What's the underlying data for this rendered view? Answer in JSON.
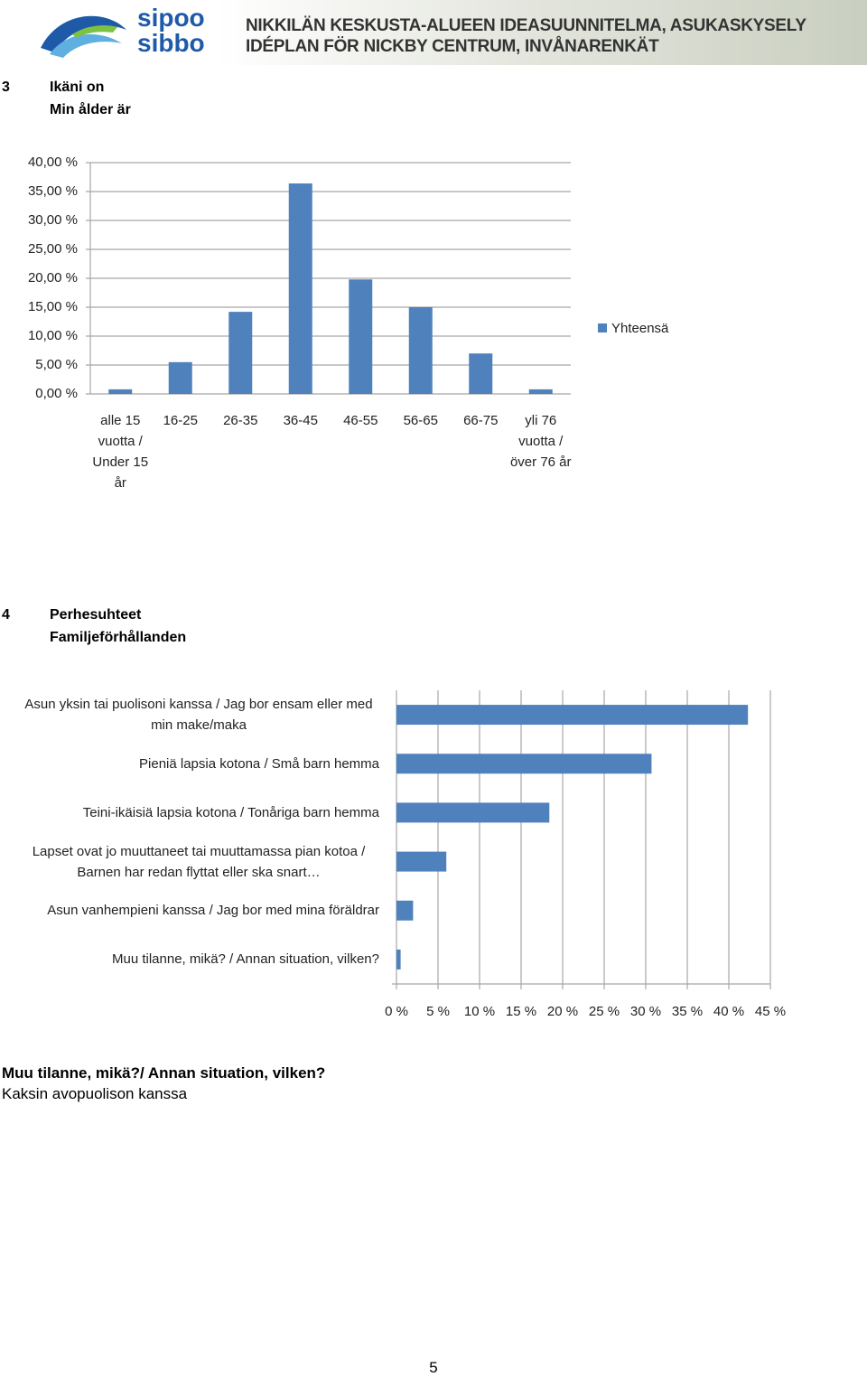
{
  "header": {
    "logo_top": "sipoo",
    "logo_bottom": "sibbo",
    "title_fi": "NIKKILÄN KESKUSTA-ALUEEN IDEASUUNNITELMA, ASUKASKYSELY",
    "title_sv": "IDÉPLAN FÖR NICKBY CENTRUM, INVÅNARENKÄT"
  },
  "sections": [
    {
      "number": "3",
      "title_fi": "Ikäni on",
      "title_sv": "Min ålder är"
    },
    {
      "number": "4",
      "title_fi": "Perhesuhteet",
      "title_sv": "Familjeförhållanden"
    }
  ],
  "chart_data": [
    {
      "type": "bar",
      "categories": [
        "alle 15 vuotta / Under 15 år",
        "16-25",
        "26-35",
        "36-45",
        "46-55",
        "56-65",
        "66-75",
        "yli 76 vuotta / över 76 år"
      ],
      "series": [
        {
          "name": "Yhteensä",
          "color": "#4f81bd",
          "values": [
            0.8,
            5.5,
            14.2,
            36.4,
            19.8,
            15.0,
            7.0,
            0.8
          ]
        }
      ],
      "ylim": [
        0,
        40
      ],
      "yticks": [
        {
          "value": 0,
          "label": "0,00 %"
        },
        {
          "value": 5,
          "label": "5,00 %"
        },
        {
          "value": 10,
          "label": "10,00 %"
        },
        {
          "value": 15,
          "label": "15,00 %"
        },
        {
          "value": 20,
          "label": "20,00 %"
        },
        {
          "value": 25,
          "label": "25,00 %"
        },
        {
          "value": 30,
          "label": "30,00 %"
        },
        {
          "value": 35,
          "label": "35,00 %"
        },
        {
          "value": 40,
          "label": "40,00 %"
        }
      ],
      "grid": true,
      "legend": "right"
    },
    {
      "type": "barh",
      "categories": [
        "Asun yksin tai puolisoni kanssa / Jag bor ensam eller med min make/maka",
        "Pieniä lapsia kotona / Små barn hemma",
        "Teini-ikäisiä lapsia kotona / Tonåriga barn hemma",
        "Lapset ovat jo muuttaneet tai muuttamassa pian kotoa / Barnen har redan flyttat eller ska snart…",
        "Asun vanhempieni kanssa / Jag bor med mina föräldrar",
        "Muu tilanne, mikä? / Annan situation, vilken?"
      ],
      "values": [
        42.3,
        30.7,
        18.4,
        6.0,
        2.0,
        0.5
      ],
      "color": "#4f81bd",
      "xlim": [
        0,
        45
      ],
      "xticks": [
        {
          "value": 0,
          "label": "0 %"
        },
        {
          "value": 5,
          "label": "5 %"
        },
        {
          "value": 10,
          "label": "10 %"
        },
        {
          "value": 15,
          "label": "15 %"
        },
        {
          "value": 20,
          "label": "20 %"
        },
        {
          "value": 25,
          "label": "25 %"
        },
        {
          "value": 30,
          "label": "30 %"
        },
        {
          "value": 35,
          "label": "35 %"
        },
        {
          "value": 40,
          "label": "40 %"
        },
        {
          "value": 45,
          "label": "45 %"
        }
      ],
      "grid": true
    }
  ],
  "note": {
    "title": "Muu tilanne, mikä?/ Annan situation, vilken?",
    "text": "Kaksin avopuolison kanssa"
  },
  "page_number": "5"
}
